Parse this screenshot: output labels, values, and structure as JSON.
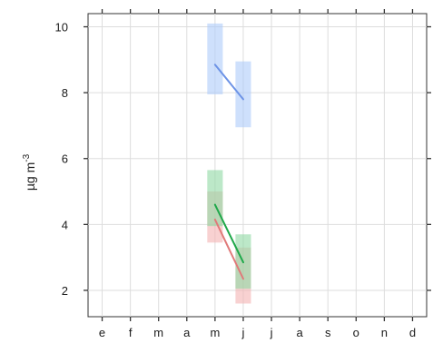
{
  "chart_data": {
    "type": "line",
    "ylabel_main": "µg m",
    "ylabel_sup": "-3",
    "categories": [
      "e",
      "f",
      "m",
      "a",
      "m",
      "j",
      "j",
      "a",
      "s",
      "o",
      "n",
      "d"
    ],
    "xlim": [
      0.5,
      12.5
    ],
    "ylim": [
      1.2,
      10.4
    ],
    "yticks": [
      2,
      4,
      6,
      8,
      10
    ],
    "grid": true,
    "series": [
      {
        "color": "#6d93e6",
        "band_color": "#aecbfa",
        "x": [
          5,
          6
        ],
        "y": [
          8.85,
          7.8
        ],
        "band_low": [
          7.95,
          6.95
        ],
        "band_high": [
          10.1,
          8.95
        ]
      },
      {
        "color": "#e07a7a",
        "band_color": "#f4b3b3",
        "x": [
          5,
          6
        ],
        "y": [
          4.15,
          2.35
        ],
        "band_low": [
          3.45,
          1.6
        ],
        "band_high": [
          5.0,
          3.3
        ]
      },
      {
        "color": "#1fa84a",
        "band_color": "#8fd9a4",
        "x": [
          5,
          6
        ],
        "y": [
          4.6,
          2.85
        ],
        "band_low": [
          3.95,
          2.05
        ],
        "band_high": [
          5.65,
          3.7
        ]
      }
    ]
  }
}
